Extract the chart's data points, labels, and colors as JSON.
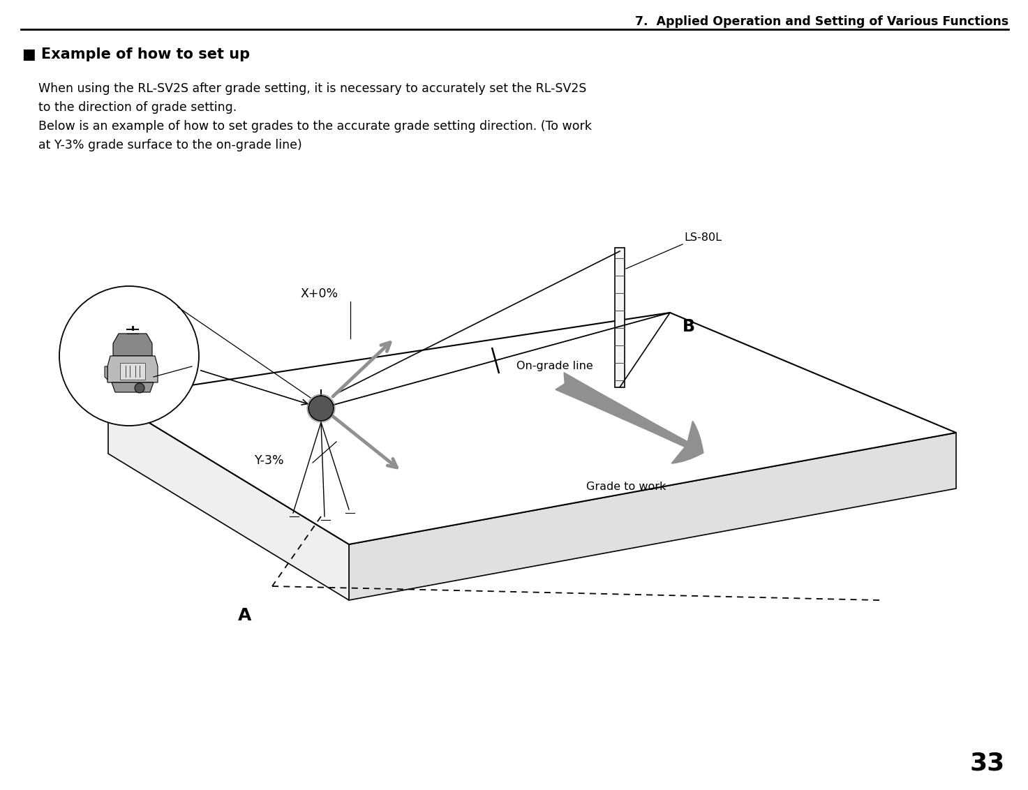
{
  "page_title": "7.  Applied Operation and Setting of Various Functions",
  "section_heading": "■ Example of how to set up",
  "body_text_line1": "When using the RL-SV2S after grade setting, it is necessary to accurately set the RL-SV2S",
  "body_text_line2": "to the direction of grade setting.",
  "body_text_line3": "Below is an example of how to set grades to the accurate grade setting direction. (To work",
  "body_text_line4": "at Y-3% grade surface to the on-grade line)",
  "page_number": "33",
  "label_ls80l": "LS-80L",
  "label_b": "B",
  "label_a": "A",
  "label_xplus0": "X+0%",
  "label_yminus3": "Y-3%",
  "label_ongrade": "On-grade line",
  "label_grade_to_work": "Grade to work",
  "bg_color": "#ffffff",
  "line_color": "#000000",
  "gray_color": "#909090",
  "title_fontsize": 12.5,
  "heading_fontsize": 15,
  "body_fontsize": 12.5,
  "label_fontsize": 11.5
}
